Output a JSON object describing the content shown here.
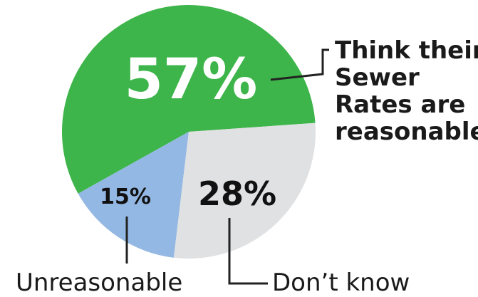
{
  "chart_data": {
    "type": "pie",
    "slices": [
      {
        "label": "Think their Sewer Rates are reasonable",
        "value": 57,
        "value_label": "57%",
        "color": "#3db54a"
      },
      {
        "label": "Don’t know",
        "value": 28,
        "value_label": "28%",
        "color": "#e0e1e3"
      },
      {
        "label": "Unreasonable",
        "value": 15,
        "value_label": "15%",
        "color": "#93b8e3"
      }
    ],
    "callouts": {
      "reasonable": [
        "Think their",
        "Sewer",
        "Rates are",
        "reasonable"
      ],
      "dont_know": "Don’t know",
      "unreasonable": "Unreasonable"
    }
  }
}
